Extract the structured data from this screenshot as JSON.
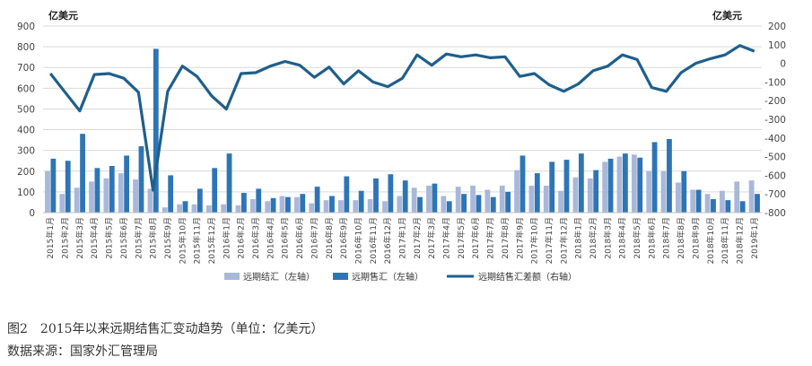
{
  "chart_data": {
    "type": "bar",
    "unit_left": "亿美元",
    "unit_right": "亿美元",
    "left_axis": {
      "ticks": [
        "0",
        "100",
        "200",
        "300",
        "400",
        "500",
        "600",
        "700",
        "800",
        "900"
      ],
      "ylim": [
        0,
        900
      ]
    },
    "right_axis": {
      "ticks": [
        "-800",
        "-700",
        "-600",
        "-500",
        "-400",
        "-300",
        "-200",
        "-100",
        "0",
        "100",
        "200"
      ],
      "ylim": [
        -800,
        200
      ]
    },
    "categories": [
      "2015年1月",
      "2015年2月",
      "2015年3月",
      "2015年4月",
      "2015年5月",
      "2015年6月",
      "2015年7月",
      "2015年8月",
      "2015年9月",
      "2015年10月",
      "2015年11月",
      "2015年12月",
      "2016年1月",
      "2016年2月",
      "2016年3月",
      "2016年4月",
      "2016年5月",
      "2016年6月",
      "2016年7月",
      "2016年8月",
      "2016年9月",
      "2016年10月",
      "2016年11月",
      "2016年12月",
      "2017年1月",
      "2017年2月",
      "2017年3月",
      "2017年4月",
      "2017年5月",
      "2017年6月",
      "2017年7月",
      "2017年8月",
      "2017年9月",
      "2017年10月",
      "2017年11月",
      "2017年12月",
      "2018年1月",
      "2018年2月",
      "2018年3月",
      "2018年4月",
      "2018年5月",
      "2018年6月",
      "2018年7月",
      "2018年8月",
      "2018年9月",
      "2018年10月",
      "2018年11月",
      "2018年12月",
      "2019年1月"
    ],
    "series": [
      {
        "name": "远期结汇（左轴）",
        "axis": "left",
        "kind": "bar",
        "color": "#a9b8d9",
        "values": [
          200,
          90,
          120,
          150,
          165,
          190,
          160,
          115,
          25,
          40,
          40,
          35,
          40,
          35,
          65,
          55,
          80,
          75,
          45,
          60,
          60,
          60,
          65,
          55,
          80,
          120,
          130,
          80,
          125,
          130,
          110,
          130,
          205,
          130,
          130,
          105,
          170,
          165,
          245,
          270,
          280,
          200,
          200,
          145,
          110,
          90,
          105,
          150,
          155
        ]
      },
      {
        "name": "远期售汇（左轴）",
        "axis": "left",
        "kind": "bar",
        "color": "#2e75b6",
        "values": [
          260,
          250,
          380,
          215,
          225,
          275,
          320,
          790,
          180,
          55,
          115,
          215,
          285,
          95,
          115,
          70,
          75,
          90,
          125,
          80,
          175,
          105,
          165,
          185,
          155,
          75,
          140,
          55,
          90,
          85,
          75,
          100,
          275,
          190,
          245,
          255,
          285,
          205,
          260,
          285,
          265,
          340,
          355,
          200,
          110,
          65,
          60,
          55,
          90
        ]
      },
      {
        "name": "远期结售汇差额（右轴）",
        "axis": "right",
        "kind": "line",
        "color": "#1f5f8b",
        "values": [
          -55,
          -155,
          -255,
          -60,
          -55,
          -80,
          -155,
          -680,
          -150,
          -15,
          -70,
          -175,
          -245,
          -55,
          -50,
          -15,
          10,
          -10,
          -75,
          -20,
          -110,
          -40,
          -100,
          -125,
          -80,
          45,
          -10,
          50,
          35,
          45,
          30,
          35,
          -70,
          -55,
          -115,
          -150,
          -110,
          -40,
          -15,
          45,
          20,
          -130,
          -150,
          -50,
          0,
          25,
          45,
          95,
          65
        ]
      }
    ]
  },
  "caption": {
    "title": "图2　2015年以来远期结售汇变动趋势（单位：亿美元）",
    "source": "数据来源：国家外汇管理局"
  }
}
